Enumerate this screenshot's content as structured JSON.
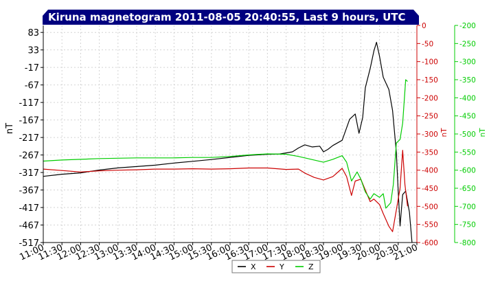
{
  "chart_data": {
    "type": "line",
    "title": "Kiruna magnetogram 2011-08-05 20:40:55, Last 9 hours, UTC",
    "x": [
      "11:00",
      "11:30",
      "12:00",
      "12:30",
      "13:00",
      "13:30",
      "14:00",
      "14:30",
      "15:00",
      "15:30",
      "16:00",
      "16:30",
      "17:00",
      "17:30",
      "18:00",
      "18:30",
      "19:00",
      "19:30",
      "20:00",
      "20:30",
      "21:00"
    ],
    "left_axis": {
      "label": "nT",
      "ylim": [
        -517,
        103
      ],
      "ticks": [
        "83",
        "33",
        "-17",
        "-67",
        "-117",
        "-167",
        "-217",
        "-267",
        "-317",
        "-367",
        "-417",
        "-467",
        "-517"
      ]
    },
    "right_axis_1": {
      "label": "nT",
      "color": "#cc0000",
      "ylim": [
        -600,
        0
      ],
      "ticks": [
        "0",
        "-50",
        "-100",
        "-150",
        "-200",
        "-250",
        "-300",
        "-350",
        "-400",
        "-450",
        "-500",
        "-550",
        "-600"
      ]
    },
    "right_axis_2": {
      "label": "nT",
      "color": "#00cc00",
      "ylim": [
        -800,
        -200
      ],
      "ticks": [
        "-200",
        "-250",
        "-300",
        "-350",
        "-400",
        "-450",
        "-500",
        "-550",
        "-600",
        "-650",
        "-700",
        "-750",
        "-800"
      ]
    },
    "series": [
      {
        "name": "X",
        "color": "#000000",
        "axis": "left",
        "points": [
          [
            11.0,
            -328
          ],
          [
            11.5,
            -322
          ],
          [
            12.0,
            -318
          ],
          [
            12.5,
            -310
          ],
          [
            13.0,
            -304
          ],
          [
            13.5,
            -300
          ],
          [
            14.0,
            -296
          ],
          [
            14.5,
            -290
          ],
          [
            15.0,
            -285
          ],
          [
            15.5,
            -280
          ],
          [
            16.0,
            -274
          ],
          [
            16.5,
            -268
          ],
          [
            17.0,
            -265
          ],
          [
            17.33,
            -264
          ],
          [
            17.67,
            -258
          ],
          [
            17.83,
            -247
          ],
          [
            18.0,
            -238
          ],
          [
            18.2,
            -244
          ],
          [
            18.4,
            -242
          ],
          [
            18.5,
            -258
          ],
          [
            18.62,
            -251
          ],
          [
            18.75,
            -240
          ],
          [
            19.0,
            -225
          ],
          [
            19.2,
            -165
          ],
          [
            19.35,
            -150
          ],
          [
            19.45,
            -205
          ],
          [
            19.55,
            -160
          ],
          [
            19.62,
            -75
          ],
          [
            19.75,
            -20
          ],
          [
            19.85,
            30
          ],
          [
            19.92,
            55
          ],
          [
            20.0,
            15
          ],
          [
            20.1,
            -45
          ],
          [
            20.25,
            -80
          ],
          [
            20.35,
            -140
          ],
          [
            20.45,
            -260
          ],
          [
            20.5,
            -370
          ],
          [
            20.55,
            -470
          ],
          [
            20.62,
            -380
          ],
          [
            20.7,
            -370
          ],
          [
            20.8,
            -430
          ],
          [
            20.87,
            -517
          ]
        ]
      },
      {
        "name": "Y",
        "color": "#cc0000",
        "axis": "right1",
        "points": [
          [
            11.0,
            -397
          ],
          [
            11.5,
            -401
          ],
          [
            12.0,
            -405
          ],
          [
            12.5,
            -402
          ],
          [
            13.0,
            -400
          ],
          [
            13.5,
            -399
          ],
          [
            14.0,
            -397
          ],
          [
            14.5,
            -397
          ],
          [
            15.0,
            -396
          ],
          [
            15.5,
            -397
          ],
          [
            16.0,
            -396
          ],
          [
            16.5,
            -394
          ],
          [
            17.0,
            -394
          ],
          [
            17.5,
            -398
          ],
          [
            17.83,
            -397
          ],
          [
            18.0,
            -408
          ],
          [
            18.25,
            -420
          ],
          [
            18.5,
            -427
          ],
          [
            18.75,
            -418
          ],
          [
            19.0,
            -395
          ],
          [
            19.12,
            -418
          ],
          [
            19.25,
            -470
          ],
          [
            19.35,
            -430
          ],
          [
            19.5,
            -425
          ],
          [
            19.62,
            -455
          ],
          [
            19.75,
            -487
          ],
          [
            19.85,
            -480
          ],
          [
            20.0,
            -495
          ],
          [
            20.1,
            -520
          ],
          [
            20.25,
            -555
          ],
          [
            20.35,
            -570
          ],
          [
            20.45,
            -510
          ],
          [
            20.55,
            -450
          ],
          [
            20.62,
            -345
          ],
          [
            20.68,
            -440
          ],
          [
            20.75,
            -500
          ]
        ]
      },
      {
        "name": "Z",
        "color": "#00cc00",
        "axis": "right2",
        "points": [
          [
            11.0,
            -575
          ],
          [
            11.5,
            -572
          ],
          [
            12.0,
            -570
          ],
          [
            12.5,
            -568
          ],
          [
            13.0,
            -567
          ],
          [
            13.5,
            -566
          ],
          [
            14.0,
            -566
          ],
          [
            14.5,
            -566
          ],
          [
            15.0,
            -565
          ],
          [
            15.5,
            -565
          ],
          [
            16.0,
            -562
          ],
          [
            16.5,
            -558
          ],
          [
            17.0,
            -555
          ],
          [
            17.5,
            -556
          ],
          [
            17.83,
            -562
          ],
          [
            18.0,
            -566
          ],
          [
            18.25,
            -572
          ],
          [
            18.5,
            -578
          ],
          [
            18.75,
            -570
          ],
          [
            19.0,
            -560
          ],
          [
            19.12,
            -578
          ],
          [
            19.25,
            -630
          ],
          [
            19.4,
            -605
          ],
          [
            19.5,
            -625
          ],
          [
            19.62,
            -660
          ],
          [
            19.75,
            -680
          ],
          [
            19.85,
            -665
          ],
          [
            20.0,
            -675
          ],
          [
            20.1,
            -665
          ],
          [
            20.17,
            -705
          ],
          [
            20.3,
            -690
          ],
          [
            20.37,
            -640
          ],
          [
            20.45,
            -525
          ],
          [
            20.55,
            -515
          ],
          [
            20.62,
            -470
          ],
          [
            20.7,
            -350
          ],
          [
            20.75,
            -355
          ]
        ]
      }
    ],
    "legend": {
      "placement": "bottom-center",
      "entries": [
        "X",
        "Y",
        "Z"
      ]
    },
    "grid": true
  }
}
